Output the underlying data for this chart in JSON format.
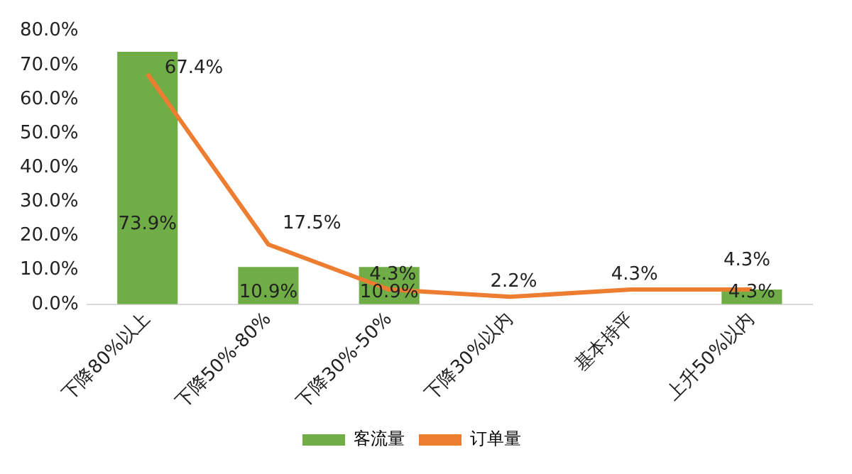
{
  "chart_data": {
    "type": "bar",
    "categories": [
      "下降80%以上",
      "下降50%-80%",
      "下降30%-50%",
      "下降30%以内",
      "基本持平",
      "上升50%以内"
    ],
    "series": [
      {
        "name": "客流量",
        "color": "#70ad47",
        "values": [
          73.9,
          10.9,
          10.9,
          0,
          0,
          4.3
        ],
        "value_labels": [
          "73.9%",
          "10.9%",
          "10.9%",
          null,
          null,
          "4.3%"
        ]
      },
      {
        "name": "订单量",
        "type": "line",
        "color": "#ed7d31",
        "values": [
          67.4,
          17.5,
          4.3,
          2.2,
          4.3,
          4.3
        ],
        "value_labels": [
          "67.4%",
          "17.5%",
          "4.3%",
          "2.2%",
          "4.3%",
          "4.3%"
        ]
      }
    ],
    "ylim": [
      0,
      80
    ],
    "yticks": [
      {
        "value": 0,
        "label": "0.0%"
      },
      {
        "value": 10,
        "label": "10.0%"
      },
      {
        "value": 20,
        "label": "20.0%"
      },
      {
        "value": 30,
        "label": "30.0%"
      },
      {
        "value": 40,
        "label": "40.0%"
      },
      {
        "value": 50,
        "label": "50.0%"
      },
      {
        "value": 60,
        "label": "60.0%"
      },
      {
        "value": 70,
        "label": "70.0%"
      },
      {
        "value": 80,
        "label": "80.0%"
      }
    ],
    "grid": false,
    "legend": "bottom",
    "marker": "none"
  }
}
